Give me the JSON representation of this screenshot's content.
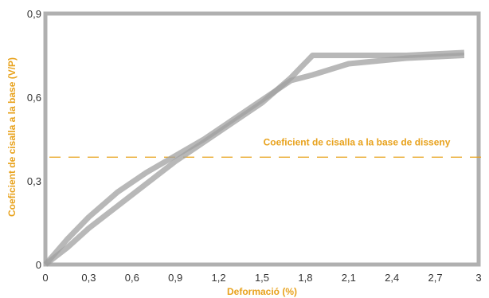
{
  "chart_data": {
    "type": "line",
    "xlabel": "Deformació (%)",
    "ylabel": "Coeficient de cisalla a la base (V/P)",
    "xlim": [
      0,
      3
    ],
    "ylim": [
      0,
      0.9
    ],
    "x_ticks": [
      "0",
      "0,3",
      "0,6",
      "0,9",
      "1,2",
      "1,5",
      "1,8",
      "2,1",
      "2,4",
      "2,7",
      "3"
    ],
    "x_tick_values": [
      0,
      0.3,
      0.6,
      0.9,
      1.2,
      1.5,
      1.8,
      2.1,
      2.4,
      2.7,
      3.0
    ],
    "y_ticks": [
      "0",
      "0,3",
      "0,6",
      "0,9"
    ],
    "y_tick_values": [
      0,
      0.3,
      0.6,
      0.9
    ],
    "grid": false,
    "reference_line": {
      "label": "Coeficient de cisalla a la base de disseny",
      "y": 0.385,
      "color": "#e8a21c",
      "style": "dashed"
    },
    "series": [
      {
        "color": "#a0a0a0",
        "x": [
          0.0,
          0.15,
          0.3,
          0.5,
          0.7,
          0.9,
          1.1,
          1.3,
          1.5,
          1.7,
          1.85,
          2.1,
          2.5,
          2.9
        ],
        "y": [
          0.0,
          0.09,
          0.17,
          0.26,
          0.33,
          0.39,
          0.45,
          0.52,
          0.59,
          0.66,
          0.68,
          0.72,
          0.74,
          0.75
        ]
      },
      {
        "color": "#a0a0a0",
        "x": [
          0.0,
          0.15,
          0.3,
          0.5,
          0.7,
          0.9,
          1.1,
          1.3,
          1.5,
          1.7,
          1.85,
          2.1,
          2.5,
          2.9
        ],
        "y": [
          0.0,
          0.06,
          0.13,
          0.21,
          0.29,
          0.37,
          0.44,
          0.51,
          0.58,
          0.67,
          0.75,
          0.75,
          0.75,
          0.76
        ]
      }
    ],
    "colors": {
      "axis_frame": "#a8a8a8",
      "labels": "#e8a21c",
      "ticks": "#333333"
    }
  }
}
